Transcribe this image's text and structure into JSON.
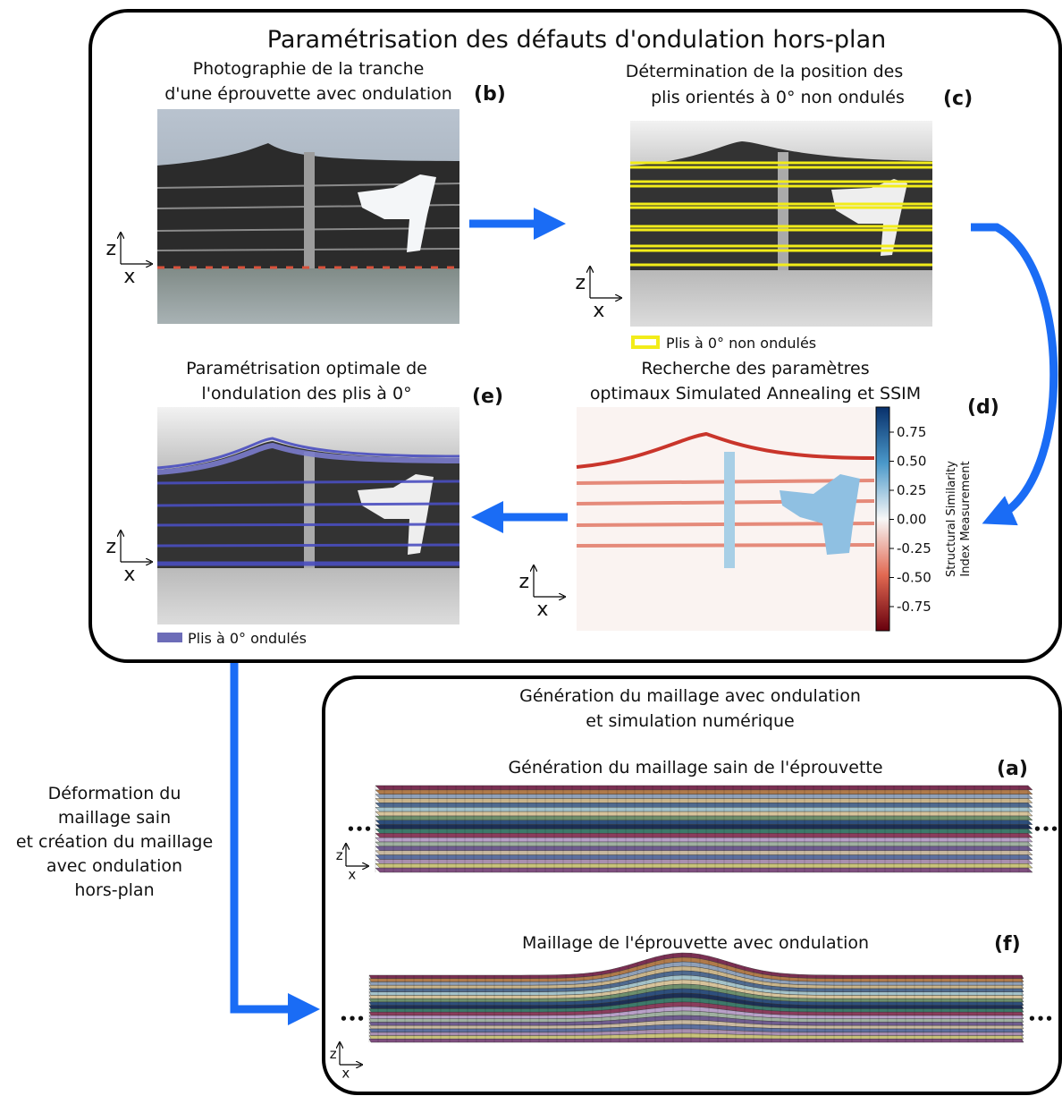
{
  "title": "Paramétrisation des défauts d'ondulation hors-plan",
  "panels": {
    "b": {
      "label": "(b)",
      "caption": [
        "Photographie de la tranche",
        "d'une éprouvette avec ondulation"
      ]
    },
    "c": {
      "label": "(c)",
      "caption": [
        "Détermination de la position des",
        "plis orientés à 0° non ondulés"
      ],
      "legend": "Plis à 0° non ondulés"
    },
    "d": {
      "label": "(d)",
      "caption": [
        "Recherche des paramètres",
        "optimaux Simulated Annealing et SSIM"
      ],
      "colorbar": {
        "title": [
          "Structural Similarity",
          "Index Measurement"
        ],
        "ticks": [
          "0.75",
          "0.50",
          "0.25",
          "0.00",
          "-0.25",
          "-0.50",
          "-0.75"
        ]
      }
    },
    "e": {
      "label": "(e)",
      "caption": [
        "Paramétrisation optimale de",
        "l'ondulation des plis à 0°"
      ],
      "legend": "Plis à 0° ondulés"
    }
  },
  "side_note": [
    "Déformation du",
    "maillage sain",
    "et création du maillage",
    "avec ondulation",
    "hors-plan"
  ],
  "simulation": {
    "title": [
      "Génération du maillage avec ondulation",
      "et simulation numérique"
    ],
    "a": {
      "label": "(a)",
      "caption": "Génération du maillage sain de l'éprouvette"
    },
    "f": {
      "label": "(f)",
      "caption": "Maillage de l'éprouvette avec ondulation"
    }
  },
  "axis_labels": {
    "z": "z",
    "x": "x"
  },
  "ellipsis": "•••"
}
